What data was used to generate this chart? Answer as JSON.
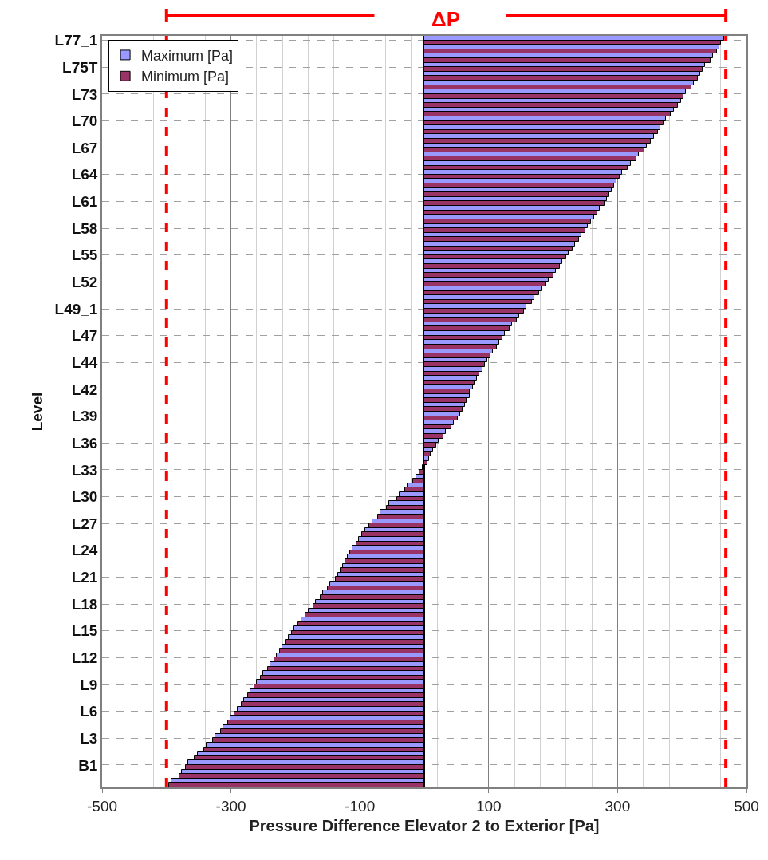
{
  "chart_data": {
    "type": "bar",
    "orientation": "horizontal",
    "categories": [
      "L77_1",
      null,
      null,
      "L75T",
      null,
      null,
      "L73",
      null,
      null,
      "L70",
      null,
      null,
      "L67",
      null,
      null,
      "L64",
      null,
      null,
      "L61",
      null,
      null,
      "L58",
      null,
      null,
      "L55",
      null,
      null,
      "L52",
      null,
      null,
      "L49_1",
      null,
      null,
      "L47",
      null,
      null,
      "L44",
      null,
      null,
      "L42",
      null,
      null,
      "L39",
      null,
      null,
      "L36",
      null,
      null,
      "L33",
      null,
      null,
      "L30",
      null,
      null,
      "L27",
      null,
      null,
      "L24",
      null,
      null,
      "L21",
      null,
      null,
      "L18",
      null,
      null,
      "L15",
      null,
      null,
      "L12",
      null,
      null,
      "L9",
      null,
      null,
      "L6",
      null,
      null,
      "L3",
      null,
      null,
      "B1",
      null,
      null
    ],
    "series": [
      {
        "name": "Maximum [Pa]",
        "color": "#9999ff",
        "values": [
          465,
          458,
          448,
          436,
          428,
          418,
          406,
          398,
          387,
          375,
          366,
          356,
          345,
          333,
          320,
          307,
          298,
          291,
          284,
          272,
          263,
          254,
          244,
          234,
          224,
          214,
          204,
          193,
          182,
          171,
          159,
          147,
          136,
          125,
          116,
          107,
          98,
          90,
          82,
          75,
          70,
          63,
          56,
          46,
          34,
          22,
          14,
          8,
          -3,
          -13,
          -26,
          -38,
          -54,
          -68,
          -81,
          -92,
          -101,
          -111,
          -119,
          -126,
          -134,
          -146,
          -157,
          -168,
          -180,
          -191,
          -202,
          -211,
          -220,
          -229,
          -239,
          -250,
          -260,
          -270,
          -280,
          -290,
          -301,
          -312,
          -324,
          -338,
          -352,
          -366,
          -376,
          -392
        ]
      },
      {
        "name": "Minimum [Pa]",
        "color": "#993366",
        "values": [
          461,
          454,
          444,
          432,
          424,
          414,
          402,
          394,
          383,
          371,
          362,
          352,
          341,
          329,
          316,
          303,
          294,
          287,
          280,
          268,
          259,
          250,
          240,
          230,
          220,
          210,
          200,
          189,
          178,
          167,
          155,
          143,
          132,
          121,
          112,
          103,
          94,
          86,
          78,
          71,
          66,
          59,
          52,
          42,
          30,
          18,
          10,
          5,
          -7,
          -17,
          -30,
          -42,
          -58,
          -72,
          -85,
          -96,
          -105,
          -115,
          -123,
          -130,
          -138,
          -150,
          -161,
          -172,
          -184,
          -195,
          -206,
          -215,
          -224,
          -233,
          -243,
          -254,
          -264,
          -274,
          -284,
          -294,
          -305,
          -316,
          -328,
          -342,
          -356,
          -370,
          -380,
          -396
        ]
      }
    ],
    "xlabel": "Pressure Difference Elevator 2 to Exterior [Pa]",
    "ylabel": "Level",
    "xlim": [
      -500,
      500
    ],
    "xticks": [
      -500,
      -300,
      -100,
      100,
      300,
      500
    ],
    "grid": true,
    "legend": "top left",
    "ref_lines": [
      {
        "axis": "x",
        "value": -400,
        "color": "#ff0000",
        "line_style": "dashed"
      },
      {
        "axis": "x",
        "value": 468,
        "color": "#ff0000",
        "line_style": "dashed"
      }
    ],
    "annotations": [
      "ΔP"
    ]
  }
}
